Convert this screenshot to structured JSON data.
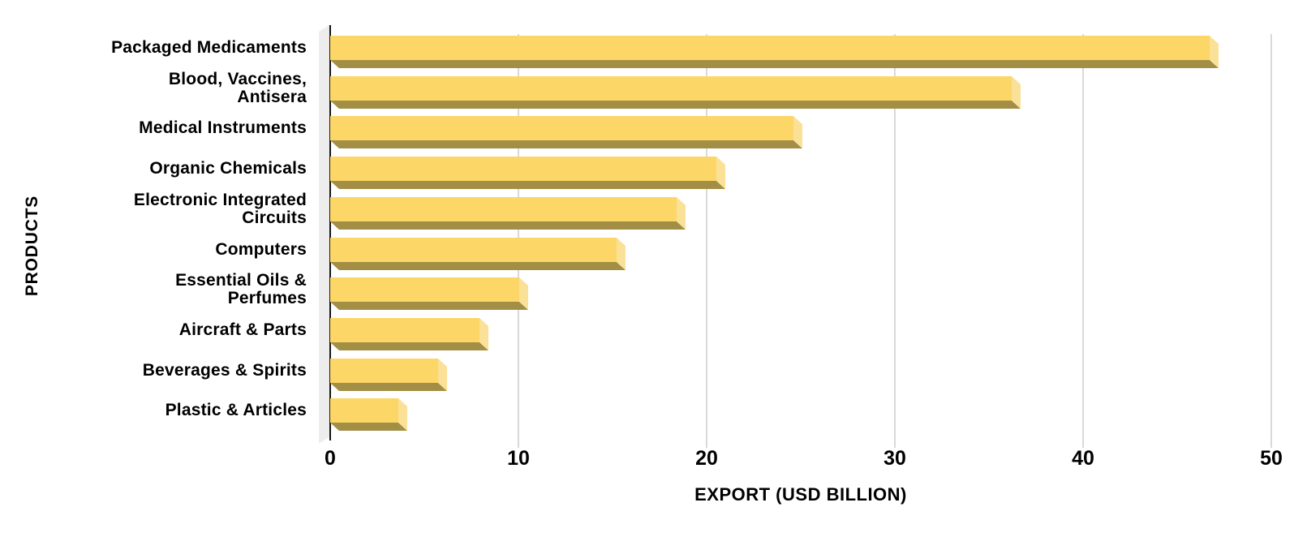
{
  "chart_data": {
    "type": "bar",
    "orientation": "horizontal",
    "title": "",
    "xlabel": "EXPORT (USD BILLION)",
    "ylabel": "PRODUCTS",
    "xlim": [
      0,
      50
    ],
    "xticks": [
      0,
      10,
      20,
      30,
      40,
      50
    ],
    "grid": true,
    "legend": false,
    "categories": [
      "Packaged Medicaments",
      "Blood, Vaccines,\nAntisera",
      "Medical Instruments",
      "Organic Chemicals",
      "Electronic Integrated\nCircuits",
      "Computers",
      "Essential Oils &\nPerfumes",
      "Aircraft & Parts",
      "Beverages & Spirits",
      "Plastic & Articles"
    ],
    "values": [
      47.2,
      36.7,
      25.1,
      21.0,
      18.9,
      15.7,
      10.5,
      8.4,
      6.2,
      4.1
    ],
    "colors": {
      "bar_face": "#fcd666",
      "bar_side": "#fae197",
      "bar_bottom": "#a28e45",
      "gridline": "#d9d9d9",
      "axis_line": "#151515",
      "wall": "#ededed",
      "text": "#000000",
      "background": "#ffffff"
    }
  }
}
